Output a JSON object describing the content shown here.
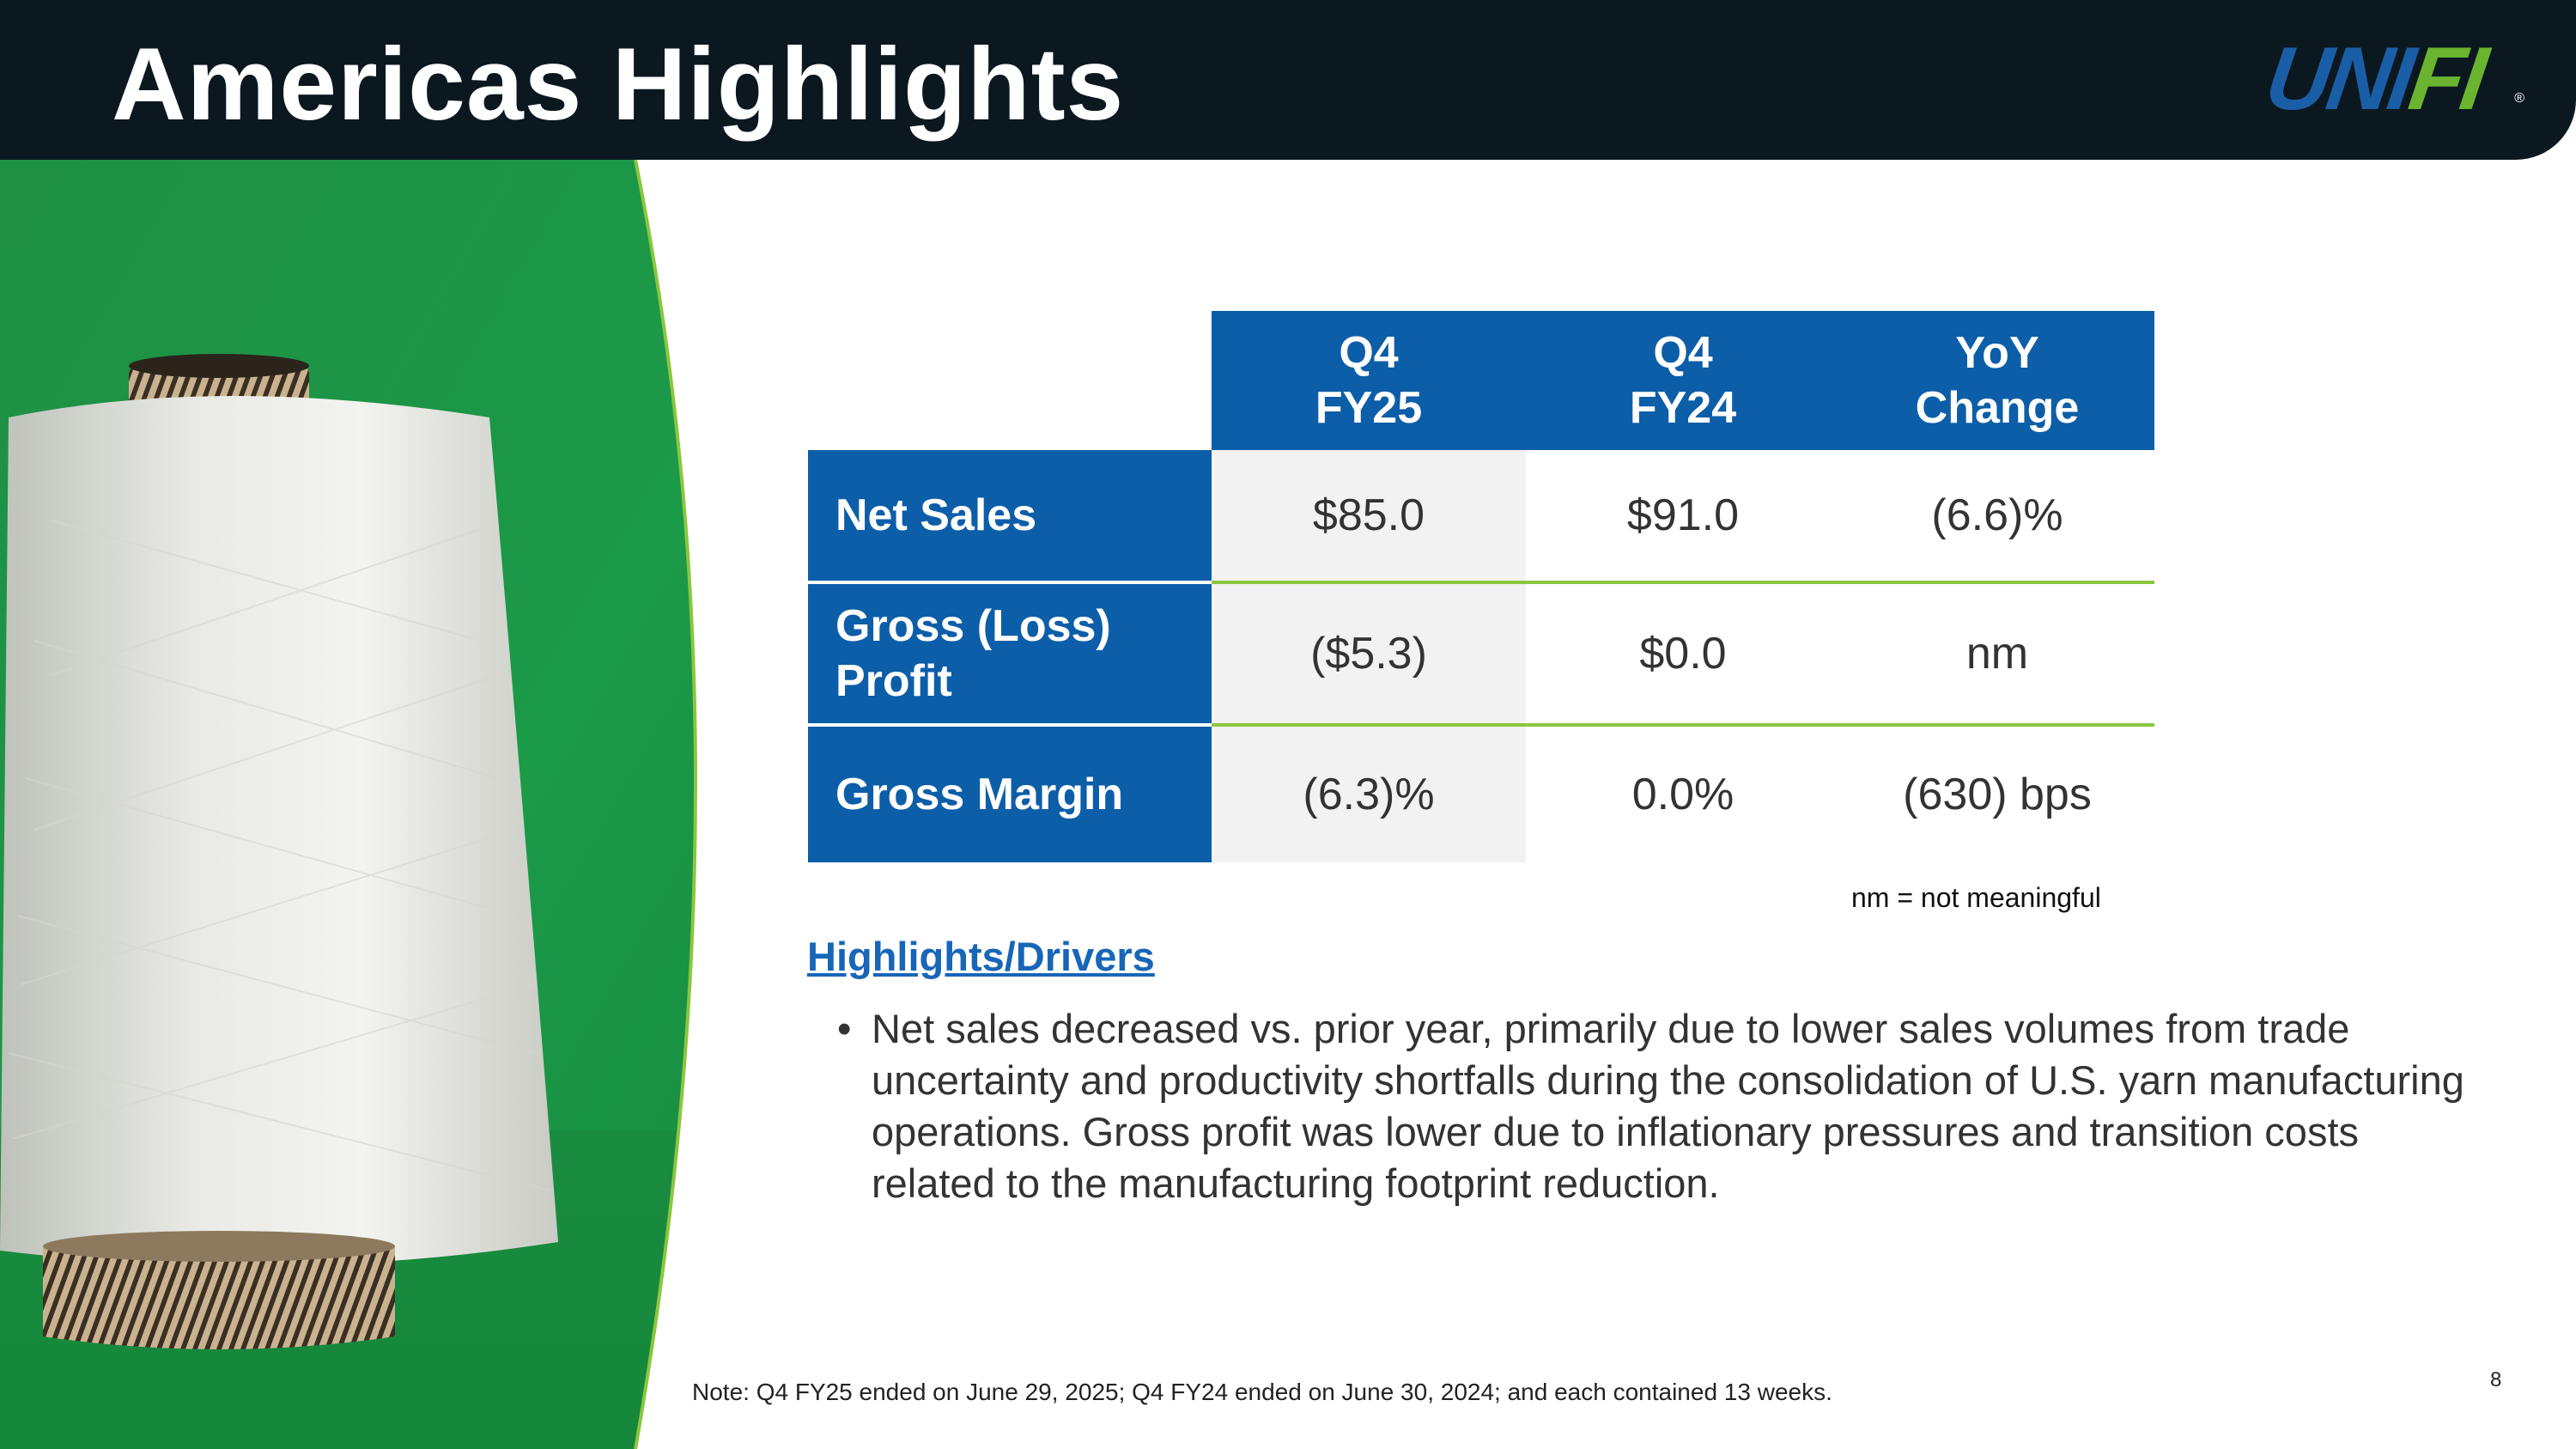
{
  "header": {
    "title": "Americas Highlights",
    "logo_main": "UNI",
    "logo_accent": "FI",
    "logo_reg": "®"
  },
  "colors": {
    "header_bg": "#0c1820",
    "table_blue": "#0d5ea8",
    "accent_green": "#8cc63f",
    "photo_green": "#1e9446",
    "link_blue": "#1766b8"
  },
  "photo": {
    "icon": "yarn-cone-image"
  },
  "table": {
    "columns": [
      {
        "line1": "Q4",
        "line2": "FY25"
      },
      {
        "line1": "Q4",
        "line2": "FY24"
      },
      {
        "line1": "YoY",
        "line2": "Change"
      }
    ],
    "rows": [
      {
        "label_line1": "Net Sales",
        "label_line2": "",
        "values": [
          "$85.0",
          "$91.0",
          "(6.6)%"
        ]
      },
      {
        "label_line1": "Gross (Loss)",
        "label_line2": "Profit",
        "values": [
          "($5.3)",
          "$0.0",
          "nm"
        ]
      },
      {
        "label_line1": "Gross Margin",
        "label_line2": "",
        "values": [
          "(6.3)%",
          "0.0%",
          "(630) bps"
        ]
      }
    ]
  },
  "nm_note": "nm = not meaningful",
  "drivers": {
    "title": "Highlights/Drivers",
    "bullet_char": "•",
    "bullets": [
      "Net sales decreased vs. prior year, primarily due to lower sales volumes from trade uncertainty and productivity shortfalls during the consolidation of U.S. yarn manufacturing operations. Gross profit was lower due to inflationary pressures and transition costs related to the manufacturing footprint reduction."
    ]
  },
  "footnote": "Note: Q4 FY25 ended on June 29, 2025; Q4 FY24 ended on June 30, 2024; and each contained 13 weeks.",
  "page_number": "8"
}
